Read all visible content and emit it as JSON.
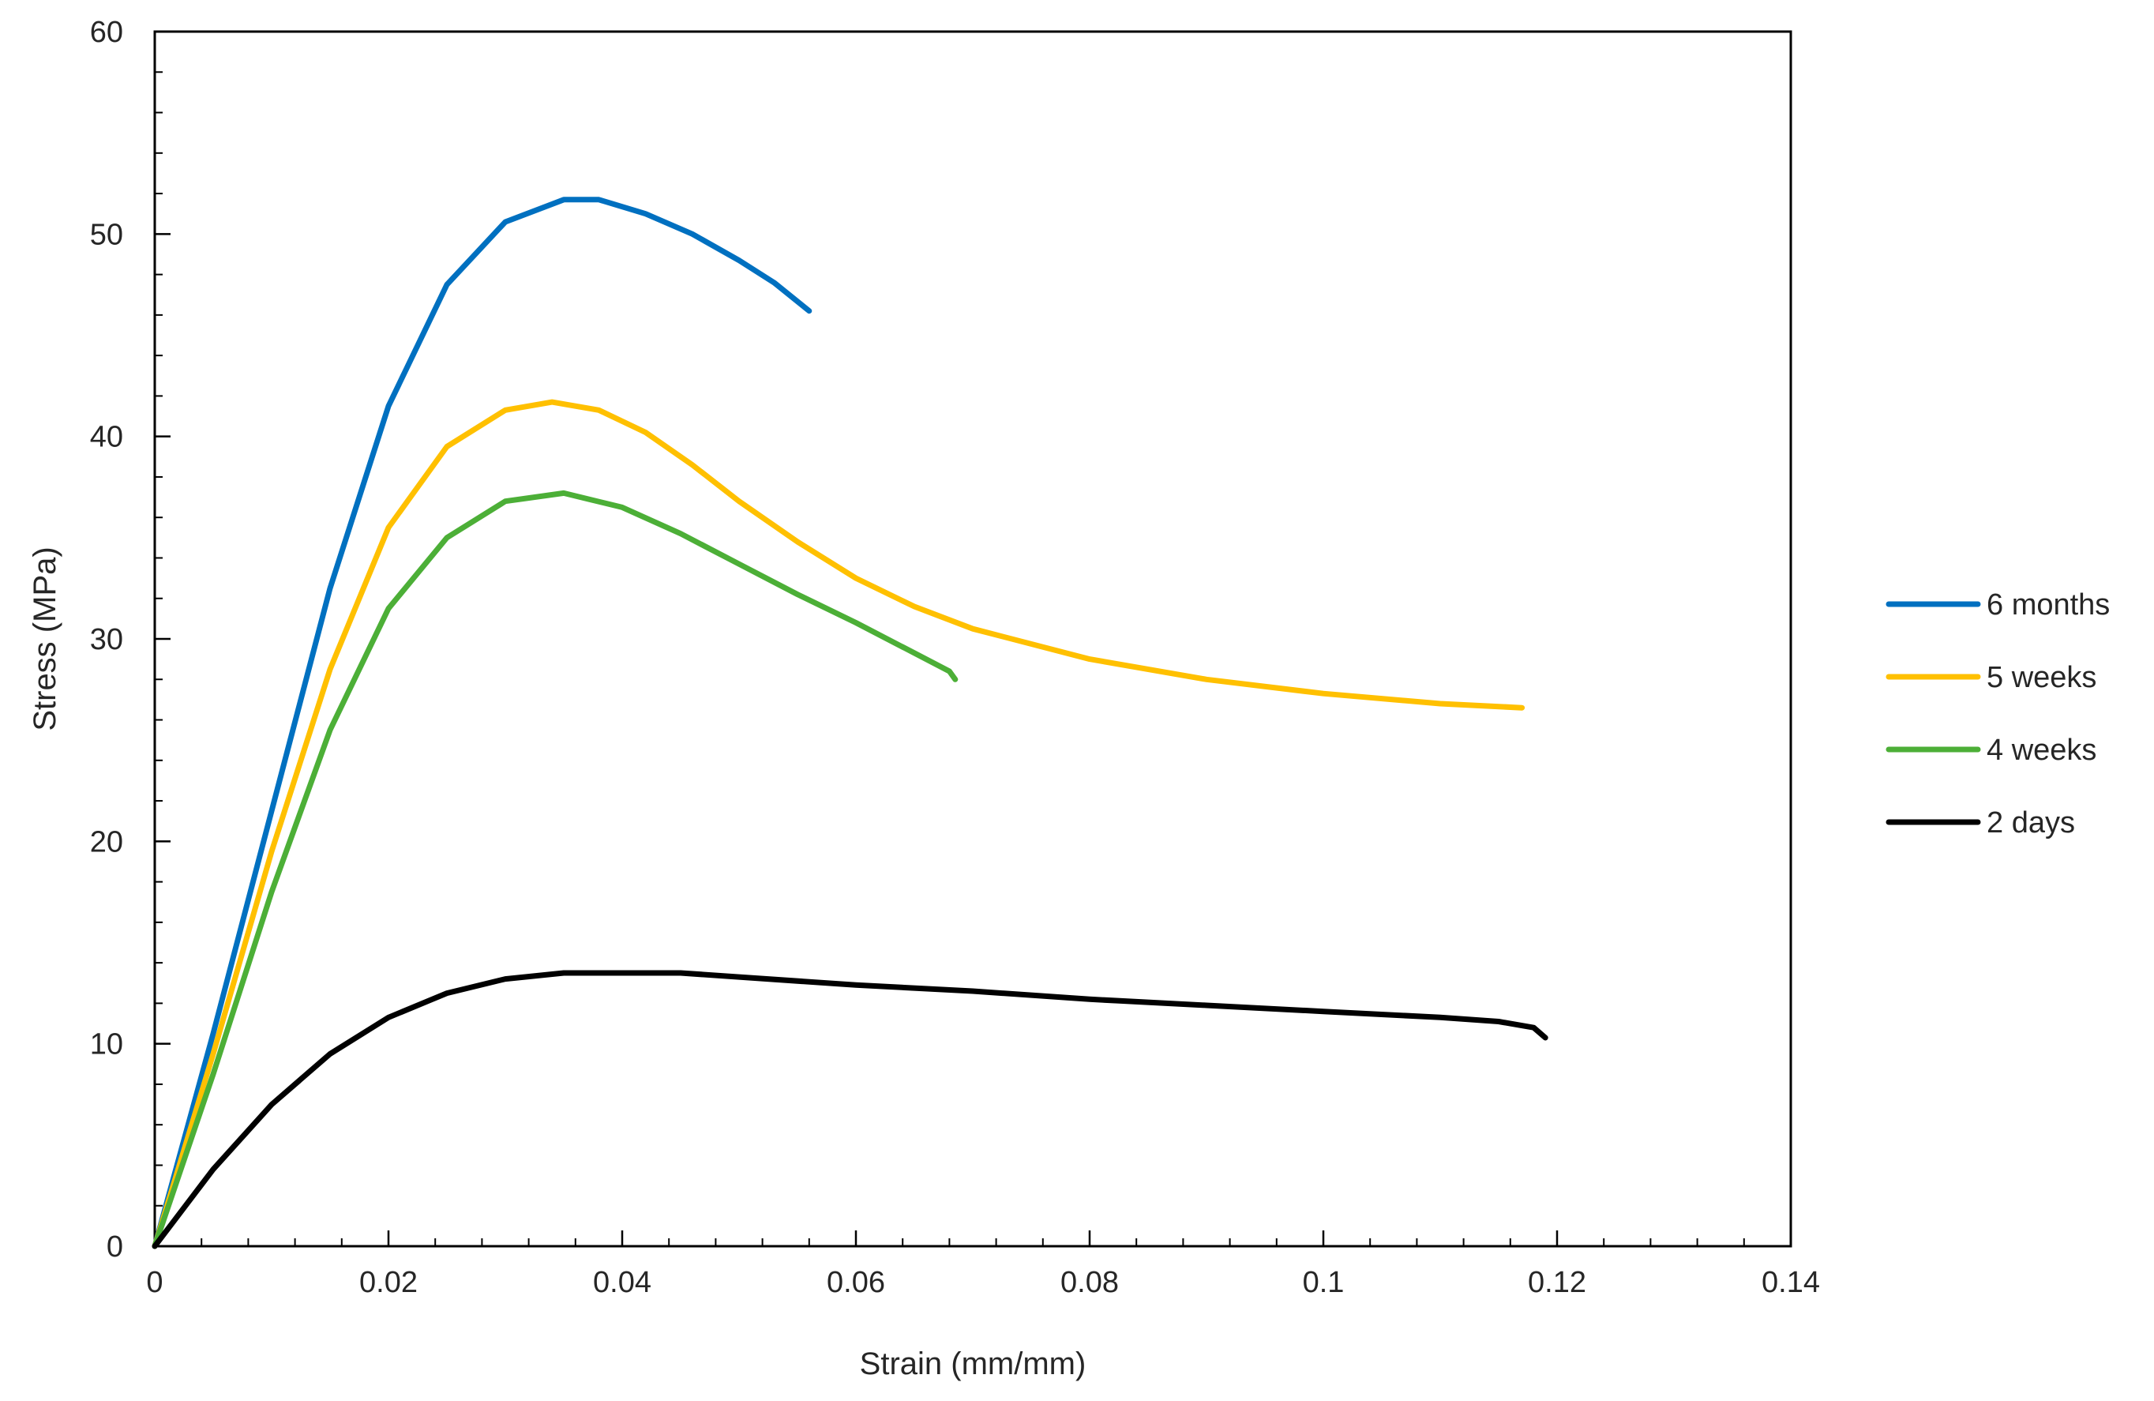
{
  "chart_data": {
    "type": "line",
    "title": "",
    "xlabel": "Strain (mm/mm)",
    "ylabel": "Stress (MPa)",
    "xlim": [
      0,
      0.14
    ],
    "ylim": [
      0,
      60
    ],
    "x_ticks": [
      0,
      0.02,
      0.04,
      0.06,
      0.08,
      0.1,
      0.12,
      0.14
    ],
    "x_tick_labels": [
      "0",
      "0.02",
      "0.04",
      "0.06",
      "0.08",
      "0.1",
      "0.12",
      "0.14"
    ],
    "y_ticks": [
      0,
      10,
      20,
      30,
      40,
      50,
      60
    ],
    "y_tick_labels": [
      "0",
      "10",
      "20",
      "30",
      "40",
      "50",
      "60"
    ],
    "grid": false,
    "legend_position": "right",
    "series": [
      {
        "name": "6 months",
        "color": "#0070C0",
        "points": [
          [
            0,
            0
          ],
          [
            0.005,
            10.5
          ],
          [
            0.01,
            21.5
          ],
          [
            0.015,
            32.5
          ],
          [
            0.02,
            41.5
          ],
          [
            0.025,
            47.5
          ],
          [
            0.03,
            50.6
          ],
          [
            0.035,
            51.7
          ],
          [
            0.038,
            51.7
          ],
          [
            0.042,
            51.0
          ],
          [
            0.046,
            50.0
          ],
          [
            0.05,
            48.7
          ],
          [
            0.053,
            47.6
          ],
          [
            0.056,
            46.2
          ]
        ]
      },
      {
        "name": "5 weeks",
        "color": "#FFC000",
        "points": [
          [
            0,
            0
          ],
          [
            0.005,
            9.5
          ],
          [
            0.01,
            19.5
          ],
          [
            0.015,
            28.5
          ],
          [
            0.02,
            35.5
          ],
          [
            0.025,
            39.5
          ],
          [
            0.03,
            41.3
          ],
          [
            0.034,
            41.7
          ],
          [
            0.038,
            41.3
          ],
          [
            0.042,
            40.2
          ],
          [
            0.046,
            38.6
          ],
          [
            0.05,
            36.8
          ],
          [
            0.055,
            34.8
          ],
          [
            0.06,
            33.0
          ],
          [
            0.065,
            31.6
          ],
          [
            0.07,
            30.5
          ],
          [
            0.08,
            29.0
          ],
          [
            0.09,
            28.0
          ],
          [
            0.1,
            27.3
          ],
          [
            0.11,
            26.8
          ],
          [
            0.117,
            26.6
          ]
        ]
      },
      {
        "name": "4 weeks",
        "color": "#4CAF37",
        "points": [
          [
            0,
            0
          ],
          [
            0.005,
            8.5
          ],
          [
            0.01,
            17.5
          ],
          [
            0.015,
            25.5
          ],
          [
            0.02,
            31.5
          ],
          [
            0.025,
            35.0
          ],
          [
            0.03,
            36.8
          ],
          [
            0.035,
            37.2
          ],
          [
            0.04,
            36.5
          ],
          [
            0.045,
            35.2
          ],
          [
            0.05,
            33.7
          ],
          [
            0.055,
            32.2
          ],
          [
            0.06,
            30.8
          ],
          [
            0.065,
            29.3
          ],
          [
            0.068,
            28.4
          ],
          [
            0.0685,
            28.0
          ]
        ]
      },
      {
        "name": "2 days",
        "color": "#000000",
        "points": [
          [
            0,
            0
          ],
          [
            0.005,
            3.8
          ],
          [
            0.01,
            7.0
          ],
          [
            0.015,
            9.5
          ],
          [
            0.02,
            11.3
          ],
          [
            0.025,
            12.5
          ],
          [
            0.03,
            13.2
          ],
          [
            0.035,
            13.5
          ],
          [
            0.04,
            13.5
          ],
          [
            0.045,
            13.5
          ],
          [
            0.05,
            13.3
          ],
          [
            0.06,
            12.9
          ],
          [
            0.07,
            12.6
          ],
          [
            0.08,
            12.2
          ],
          [
            0.09,
            11.9
          ],
          [
            0.1,
            11.6
          ],
          [
            0.11,
            11.3
          ],
          [
            0.115,
            11.1
          ],
          [
            0.118,
            10.8
          ],
          [
            0.119,
            10.3
          ]
        ]
      }
    ]
  }
}
